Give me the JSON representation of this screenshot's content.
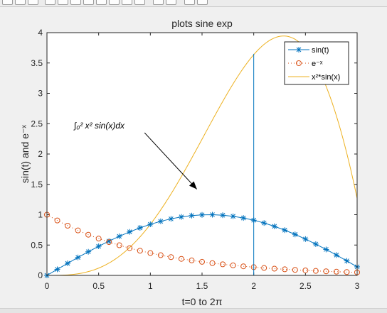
{
  "window": {
    "toolbar_icons": [
      "folder-icon",
      "save-icon",
      "print-icon",
      "pointer-icon",
      "zoom-in-icon",
      "zoom-out-icon",
      "pan-icon",
      "rotate-icon",
      "data-cursor-icon",
      "brush-icon",
      "link-icon",
      "colorbar-icon",
      "legend-icon",
      "hide-plot-tools-icon",
      "show-plot-tools-icon"
    ]
  },
  "chart_data": {
    "type": "line",
    "title": "plots sine exp",
    "xlabel": "t=0 to 2π",
    "ylabel": "sin(t) and e⁻ˣ",
    "xlim": [
      0,
      3
    ],
    "ylim": [
      0,
      4
    ],
    "x_ticks": [
      "0",
      "0.5",
      "1",
      "1.5",
      "2",
      "2.5",
      "3"
    ],
    "y_ticks": [
      "0",
      "0.5",
      "1",
      "1.5",
      "2",
      "2.5",
      "3",
      "3.5",
      "4"
    ],
    "grid": false,
    "legend_position": "top-right",
    "series": [
      {
        "name": "sin(t)",
        "color": "#0072BD",
        "style": "solid line with asterisk markers",
        "x": [
          0,
          0.1,
          0.2,
          0.3,
          0.4,
          0.5,
          0.6,
          0.7,
          0.8,
          0.9,
          1.0,
          1.1,
          1.2,
          1.3,
          1.4,
          1.5,
          1.6,
          1.7,
          1.8,
          1.9,
          2.0,
          2.1,
          2.2,
          2.3,
          2.4,
          2.5,
          2.6,
          2.7,
          2.8,
          2.9,
          3.0
        ],
        "y": [
          0,
          0.0998,
          0.1987,
          0.2955,
          0.3894,
          0.4794,
          0.5646,
          0.6442,
          0.7174,
          0.7833,
          0.8415,
          0.8912,
          0.932,
          0.9636,
          0.9854,
          0.9975,
          0.9996,
          0.9917,
          0.9738,
          0.9463,
          0.9093,
          0.8632,
          0.8085,
          0.7457,
          0.6755,
          0.5985,
          0.5155,
          0.4274,
          0.335,
          0.2392,
          0.1411
        ]
      },
      {
        "name": "e⁻ˣ",
        "color": "#D95319",
        "style": "dotted line with circle markers",
        "x": [
          0,
          0.1,
          0.2,
          0.3,
          0.4,
          0.5,
          0.6,
          0.7,
          0.8,
          0.9,
          1.0,
          1.1,
          1.2,
          1.3,
          1.4,
          1.5,
          1.6,
          1.7,
          1.8,
          1.9,
          2.0,
          2.1,
          2.2,
          2.3,
          2.4,
          2.5,
          2.6,
          2.7,
          2.8,
          2.9,
          3.0
        ],
        "y": [
          1,
          0.9048,
          0.8187,
          0.7408,
          0.6703,
          0.6065,
          0.5488,
          0.4966,
          0.4493,
          0.4066,
          0.3679,
          0.3329,
          0.3012,
          0.2725,
          0.2466,
          0.2231,
          0.2019,
          0.1827,
          0.1653,
          0.1496,
          0.1353,
          0.1225,
          0.1108,
          0.1003,
          0.0907,
          0.0821,
          0.0743,
          0.0672,
          0.0608,
          0.055,
          0.0498
        ]
      },
      {
        "name": "x²*sin(x)",
        "color": "#EDB120",
        "style": "solid line",
        "x": [
          0,
          0.1,
          0.2,
          0.3,
          0.4,
          0.5,
          0.6,
          0.7,
          0.8,
          0.9,
          1.0,
          1.1,
          1.2,
          1.3,
          1.4,
          1.5,
          1.6,
          1.7,
          1.8,
          1.9,
          2.0,
          2.1,
          2.2,
          2.3,
          2.4,
          2.5,
          2.6,
          2.7,
          2.8,
          2.9,
          3.0
        ],
        "y": [
          0,
          0.001,
          0.0079,
          0.0266,
          0.0623,
          0.1199,
          0.2033,
          0.3157,
          0.4591,
          0.6345,
          0.8415,
          1.0783,
          1.3421,
          1.6285,
          1.9314,
          2.2444,
          2.5589,
          2.8661,
          3.155,
          3.4161,
          3.6372,
          3.8067,
          3.9132,
          3.9448,
          3.8909,
          3.7406,
          3.4848,
          3.1158,
          2.6264,
          2.0117,
          1.2701
        ]
      }
    ],
    "annotations": {
      "formula": "∫₀² x² sin(x)dx",
      "arrow_from": [
        0.6,
        2.35
      ],
      "arrow_to": [
        1.45,
        1.42
      ],
      "vertical_line": {
        "x": 2.0,
        "y_from": 0,
        "y_to": 3.65,
        "color": "#0072BD"
      }
    }
  }
}
